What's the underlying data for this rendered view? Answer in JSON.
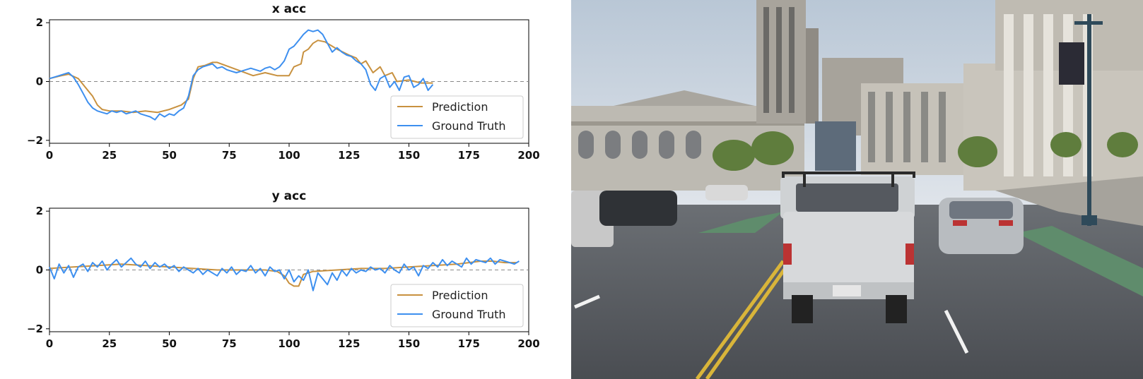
{
  "colors": {
    "prediction": "#c8913f",
    "ground_truth": "#3d8fef",
    "zero_line": "#888888",
    "axes": "#000000"
  },
  "camera_view": {
    "description_icon": "street-scene-image"
  },
  "chart_data": [
    {
      "type": "line",
      "title": "x acc",
      "xlabel": "",
      "ylabel": "",
      "xlim": [
        0,
        200
      ],
      "ylim": [
        -2.1,
        2.1
      ],
      "xticks": [
        0,
        25,
        50,
        75,
        100,
        125,
        150,
        175,
        200
      ],
      "yticks": [
        -2,
        0,
        2
      ],
      "grid": false,
      "reference_line": 0,
      "legend": {
        "placement": "lower-right",
        "entries": [
          "Prediction",
          "Ground Truth"
        ]
      },
      "series": [
        {
          "name": "Prediction",
          "x": [
            0,
            5,
            8,
            12,
            15,
            18,
            20,
            22,
            25,
            30,
            35,
            40,
            45,
            50,
            55,
            58,
            60,
            62,
            65,
            68,
            70,
            75,
            80,
            85,
            90,
            95,
            100,
            102,
            105,
            106,
            108,
            110,
            112,
            115,
            118,
            120,
            125,
            128,
            130,
            132,
            135,
            138,
            140,
            143,
            145,
            150,
            155,
            160
          ],
          "y": [
            0.1,
            0.2,
            0.25,
            0.1,
            -0.2,
            -0.5,
            -0.8,
            -0.95,
            -1.0,
            -1.0,
            -1.05,
            -1.0,
            -1.05,
            -0.95,
            -0.8,
            -0.6,
            0.1,
            0.5,
            0.55,
            0.65,
            0.65,
            0.5,
            0.35,
            0.2,
            0.3,
            0.2,
            0.2,
            0.5,
            0.6,
            1.0,
            1.1,
            1.3,
            1.4,
            1.35,
            1.2,
            1.1,
            0.9,
            0.8,
            0.6,
            0.7,
            0.3,
            0.5,
            0.2,
            0.3,
            0.0,
            0.05,
            -0.05,
            -0.05
          ]
        },
        {
          "name": "Ground Truth",
          "x": [
            0,
            2,
            4,
            6,
            8,
            10,
            12,
            14,
            16,
            18,
            20,
            22,
            24,
            26,
            28,
            30,
            32,
            34,
            36,
            38,
            40,
            42,
            44,
            46,
            48,
            50,
            52,
            54,
            56,
            58,
            60,
            62,
            64,
            66,
            68,
            70,
            72,
            74,
            76,
            78,
            80,
            82,
            84,
            86,
            88,
            90,
            92,
            94,
            96,
            98,
            100,
            102,
            104,
            106,
            108,
            110,
            112,
            114,
            116,
            118,
            120,
            122,
            124,
            126,
            128,
            130,
            132,
            134,
            136,
            138,
            140,
            142,
            144,
            146,
            148,
            150,
            152,
            154,
            156,
            158,
            160
          ],
          "y": [
            0.1,
            0.15,
            0.2,
            0.25,
            0.3,
            0.15,
            -0.1,
            -0.4,
            -0.7,
            -0.9,
            -1.0,
            -1.05,
            -1.1,
            -1.0,
            -1.05,
            -1.0,
            -1.1,
            -1.05,
            -1.0,
            -1.1,
            -1.15,
            -1.2,
            -1.3,
            -1.1,
            -1.2,
            -1.1,
            -1.15,
            -1.0,
            -0.9,
            -0.5,
            0.2,
            0.4,
            0.5,
            0.55,
            0.6,
            0.45,
            0.5,
            0.4,
            0.35,
            0.3,
            0.35,
            0.4,
            0.45,
            0.4,
            0.35,
            0.45,
            0.5,
            0.4,
            0.5,
            0.7,
            1.1,
            1.2,
            1.4,
            1.6,
            1.75,
            1.7,
            1.75,
            1.6,
            1.3,
            1.0,
            1.15,
            1.0,
            0.9,
            0.85,
            0.7,
            0.6,
            0.4,
            -0.1,
            -0.3,
            0.1,
            0.2,
            -0.2,
            0.0,
            -0.3,
            0.15,
            0.2,
            -0.2,
            -0.1,
            0.1,
            -0.3,
            -0.1
          ]
        }
      ]
    },
    {
      "type": "line",
      "title": "y acc",
      "xlabel": "",
      "ylabel": "",
      "xlim": [
        0,
        200
      ],
      "ylim": [
        -2.1,
        2.1
      ],
      "xticks": [
        0,
        25,
        50,
        75,
        100,
        125,
        150,
        175,
        200
      ],
      "yticks": [
        -2,
        0,
        2
      ],
      "grid": false,
      "reference_line": 0,
      "legend": {
        "placement": "lower-right",
        "entries": [
          "Prediction",
          "Ground Truth"
        ]
      },
      "series": [
        {
          "name": "Prediction",
          "x": [
            0,
            10,
            20,
            30,
            40,
            50,
            60,
            70,
            80,
            90,
            95,
            98,
            100,
            102,
            104,
            106,
            110,
            120,
            130,
            140,
            150,
            160,
            170,
            175,
            180,
            185,
            190,
            195
          ],
          "y": [
            0.05,
            0.1,
            0.15,
            0.2,
            0.15,
            0.1,
            0.05,
            0.0,
            0.0,
            0.0,
            -0.05,
            -0.2,
            -0.45,
            -0.55,
            -0.55,
            -0.15,
            -0.05,
            0.0,
            0.05,
            0.05,
            0.1,
            0.15,
            0.2,
            0.25,
            0.3,
            0.3,
            0.25,
            0.25
          ]
        },
        {
          "name": "Ground Truth",
          "x": [
            0,
            2,
            4,
            6,
            8,
            10,
            12,
            14,
            16,
            18,
            20,
            22,
            24,
            26,
            28,
            30,
            32,
            34,
            36,
            38,
            40,
            42,
            44,
            46,
            48,
            50,
            52,
            54,
            56,
            58,
            60,
            62,
            64,
            66,
            68,
            70,
            72,
            74,
            76,
            78,
            80,
            82,
            84,
            86,
            88,
            90,
            92,
            94,
            96,
            98,
            100,
            102,
            104,
            106,
            108,
            110,
            112,
            114,
            116,
            118,
            120,
            122,
            124,
            126,
            128,
            130,
            132,
            134,
            136,
            138,
            140,
            142,
            144,
            146,
            148,
            150,
            152,
            154,
            156,
            158,
            160,
            162,
            164,
            166,
            168,
            170,
            172,
            174,
            176,
            178,
            180,
            182,
            184,
            186,
            188,
            190,
            192,
            194,
            196
          ],
          "y": [
            0.1,
            -0.3,
            0.2,
            -0.1,
            0.15,
            -0.25,
            0.1,
            0.2,
            -0.05,
            0.25,
            0.1,
            0.3,
            0.0,
            0.2,
            0.35,
            0.1,
            0.25,
            0.4,
            0.2,
            0.1,
            0.3,
            0.05,
            0.25,
            0.1,
            0.2,
            0.05,
            0.15,
            -0.05,
            0.1,
            0.0,
            -0.1,
            0.05,
            -0.15,
            0.0,
            -0.1,
            -0.2,
            0.05,
            -0.1,
            0.1,
            -0.15,
            0.0,
            -0.05,
            0.15,
            -0.1,
            0.05,
            -0.2,
            0.1,
            -0.05,
            0.0,
            -0.3,
            0.0,
            -0.4,
            -0.2,
            -0.35,
            0.0,
            -0.7,
            -0.1,
            -0.3,
            -0.5,
            -0.1,
            -0.35,
            0.0,
            -0.2,
            0.05,
            -0.1,
            0.0,
            -0.05,
            0.1,
            0.0,
            0.05,
            -0.1,
            0.15,
            0.0,
            -0.1,
            0.2,
            0.0,
            0.1,
            -0.2,
            0.15,
            0.05,
            0.25,
            0.1,
            0.35,
            0.15,
            0.3,
            0.2,
            0.1,
            0.4,
            0.2,
            0.35,
            0.3,
            0.25,
            0.4,
            0.2,
            0.35,
            0.3,
            0.25,
            0.2,
            0.3
          ]
        }
      ]
    }
  ]
}
